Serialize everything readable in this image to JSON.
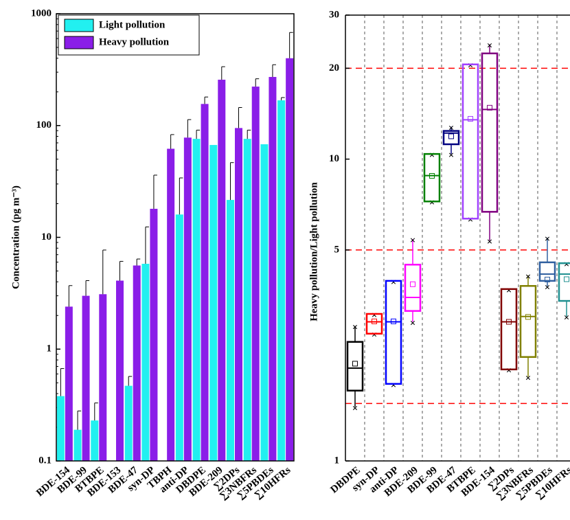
{
  "chart_data": [
    {
      "type": "bar",
      "y_label": "Concentration (pg m⁻³)",
      "log_scale": true,
      "legend": "upper left",
      "categories": [
        "BDE-154",
        "BDE-99",
        "BTBPE",
        "BDE-153",
        "BDE-47",
        "syn-DP",
        "TBPH",
        "anti-DP",
        "DBDPE",
        "BDE-209",
        "∑2DPs",
        "∑3NBFRs",
        "∑5PBDEs",
        "∑10HFRs"
      ],
      "series": [
        {
          "name": "Light pollution",
          "color": "#22f0f0",
          "values": [
            0.38,
            0.19,
            0.23,
            null,
            0.47,
            5.8,
            null,
            16,
            76,
            67,
            21.6,
            76,
            68,
            168
          ],
          "errors": [
            0.29,
            0.09,
            0.1,
            null,
            0.1,
            6.6,
            null,
            18,
            15,
            null,
            25,
            15,
            null,
            10
          ]
        },
        {
          "name": "Heavy pollution",
          "color": "#8a1ee8",
          "values": [
            2.4,
            3.0,
            3.1,
            4.1,
            5.6,
            18,
            62,
            78,
            156,
            257,
            95,
            223,
            272,
            400
          ],
          "errors": [
            1.3,
            1.1,
            4.6,
            2.0,
            0.8,
            18,
            21,
            35,
            24,
            79,
            50,
            39,
            78,
            280
          ]
        }
      ],
      "ylim": [
        0.1,
        1000
      ],
      "yticks": [
        0.1,
        1,
        10,
        100,
        1000
      ]
    },
    {
      "type": "box",
      "y_label": "Heavy pollution/Light pollution",
      "log_scale": true,
      "categories": [
        "DBDPE",
        "syn-DP",
        "anti-DP",
        "BDE-209",
        "BDE-99",
        "BDE-47",
        "BTBPE",
        "BDE-154",
        "∑2DPs",
        "∑3NBFRs",
        "∑5PBDEs",
        "∑10HFRs"
      ],
      "boxes": [
        {
          "min": 1.51,
          "q1": 1.71,
          "median": 2.03,
          "q3": 2.48,
          "max": 2.8,
          "mean": 2.1,
          "color": "#000000"
        },
        {
          "min": 2.64,
          "q1": 2.64,
          "median": 2.89,
          "q3": 3.07,
          "max": 3.07,
          "mean": 2.9,
          "color": "#ff0000"
        },
        {
          "min": 1.8,
          "q1": 1.8,
          "median": 2.89,
          "q3": 3.95,
          "max": 3.95,
          "mean": 2.9,
          "color": "#0000ff"
        },
        {
          "min": 2.89,
          "q1": 3.14,
          "median": 3.48,
          "q3": 4.47,
          "max": 5.43,
          "mean": 3.85,
          "color": "#ff00ff"
        },
        {
          "min": 7.24,
          "q1": 7.24,
          "median": 8.82,
          "q3": 10.4,
          "max": 10.4,
          "mean": 8.8,
          "color": "#008000"
        },
        {
          "min": 10.4,
          "q1": 11.2,
          "median": 12.2,
          "q3": 12.4,
          "max": 12.8,
          "mean": 11.9,
          "color": "#000080"
        },
        {
          "min": 6.35,
          "q1": 6.35,
          "median": 13.5,
          "q3": 20.6,
          "max": 20.6,
          "mean": 13.6,
          "color": "#a040ff"
        },
        {
          "min": 5.37,
          "q1": 6.69,
          "median": 14.6,
          "q3": 22.4,
          "max": 24.0,
          "mean": 14.8,
          "color": "#800080"
        },
        {
          "min": 2.01,
          "q1": 2.01,
          "median": 2.89,
          "q3": 3.71,
          "max": 3.71,
          "mean": 2.89,
          "color": "#800000"
        },
        {
          "min": 1.9,
          "q1": 2.21,
          "median": 3.01,
          "q3": 3.8,
          "max": 4.12,
          "mean": 3.0,
          "color": "#808000"
        },
        {
          "min": 3.79,
          "q1": 3.95,
          "median": 4.16,
          "q3": 4.55,
          "max": 5.49,
          "mean": 3.99,
          "color": "#3060a0"
        },
        {
          "min": 3.01,
          "q1": 3.39,
          "median": 4.16,
          "q3": 4.52,
          "max": 4.52,
          "mean": 4.0,
          "color": "#209090"
        }
      ],
      "ref_lines": [
        1.55,
        5,
        20
      ],
      "ref_color": "#ff0000",
      "ylim": [
        1,
        30
      ],
      "yticks": [
        1,
        5,
        10,
        20,
        30
      ]
    }
  ]
}
